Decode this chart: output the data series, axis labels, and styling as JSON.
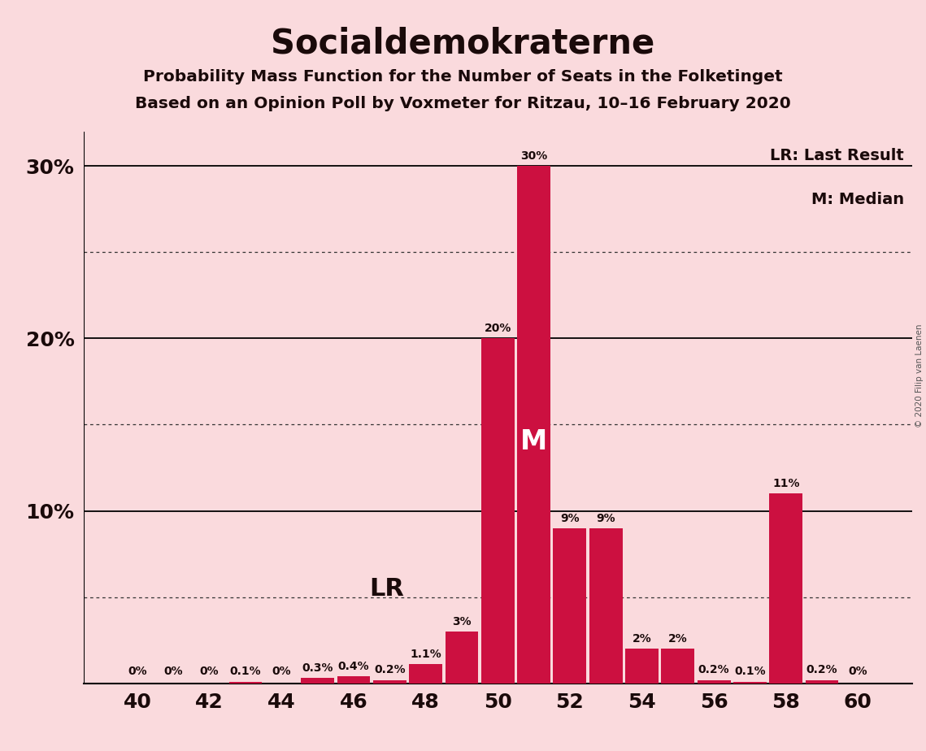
{
  "title": "Socialdemokraterne",
  "subtitle1": "Probability Mass Function for the Number of Seats in the Folketinget",
  "subtitle2": "Based on an Opinion Poll by Voxmeter for Ritzau, 10–16 February 2020",
  "copyright": "© 2020 Filip van Laenen",
  "legend_lr": "LR: Last Result",
  "legend_m": "M: Median",
  "background_color": "#fadadd",
  "bar_color": "#cc1040",
  "seats": [
    40,
    41,
    42,
    43,
    44,
    45,
    46,
    47,
    48,
    49,
    50,
    51,
    52,
    53,
    54,
    55,
    56,
    57,
    58,
    59,
    60
  ],
  "probabilities": [
    0.0,
    0.0,
    0.0,
    0.1,
    0.0,
    0.3,
    0.4,
    0.2,
    1.1,
    3.0,
    20.0,
    30.0,
    9.0,
    9.0,
    2.0,
    2.0,
    0.2,
    0.1,
    11.0,
    0.2,
    0.0
  ],
  "bar_labels": [
    "0%",
    "0%",
    "0%",
    "0.1%",
    "0%",
    "0.3%",
    "0.4%",
    "0.2%",
    "1.1%",
    "3%",
    "20%",
    "30%",
    "9%",
    "9%",
    "2%",
    "2%",
    "0.2%",
    "0.1%",
    "11%",
    "0.2%",
    "0%"
  ],
  "lr_seat": 48,
  "median_seat": 51,
  "xlim": [
    38.5,
    61.5
  ],
  "ylim": [
    0,
    32
  ],
  "yticks": [
    10,
    20,
    30
  ],
  "xticks": [
    40,
    42,
    44,
    46,
    48,
    50,
    52,
    54,
    56,
    58,
    60
  ],
  "solid_yticks": [
    10,
    20,
    30
  ],
  "dotted_yticks": [
    5,
    15,
    25
  ]
}
